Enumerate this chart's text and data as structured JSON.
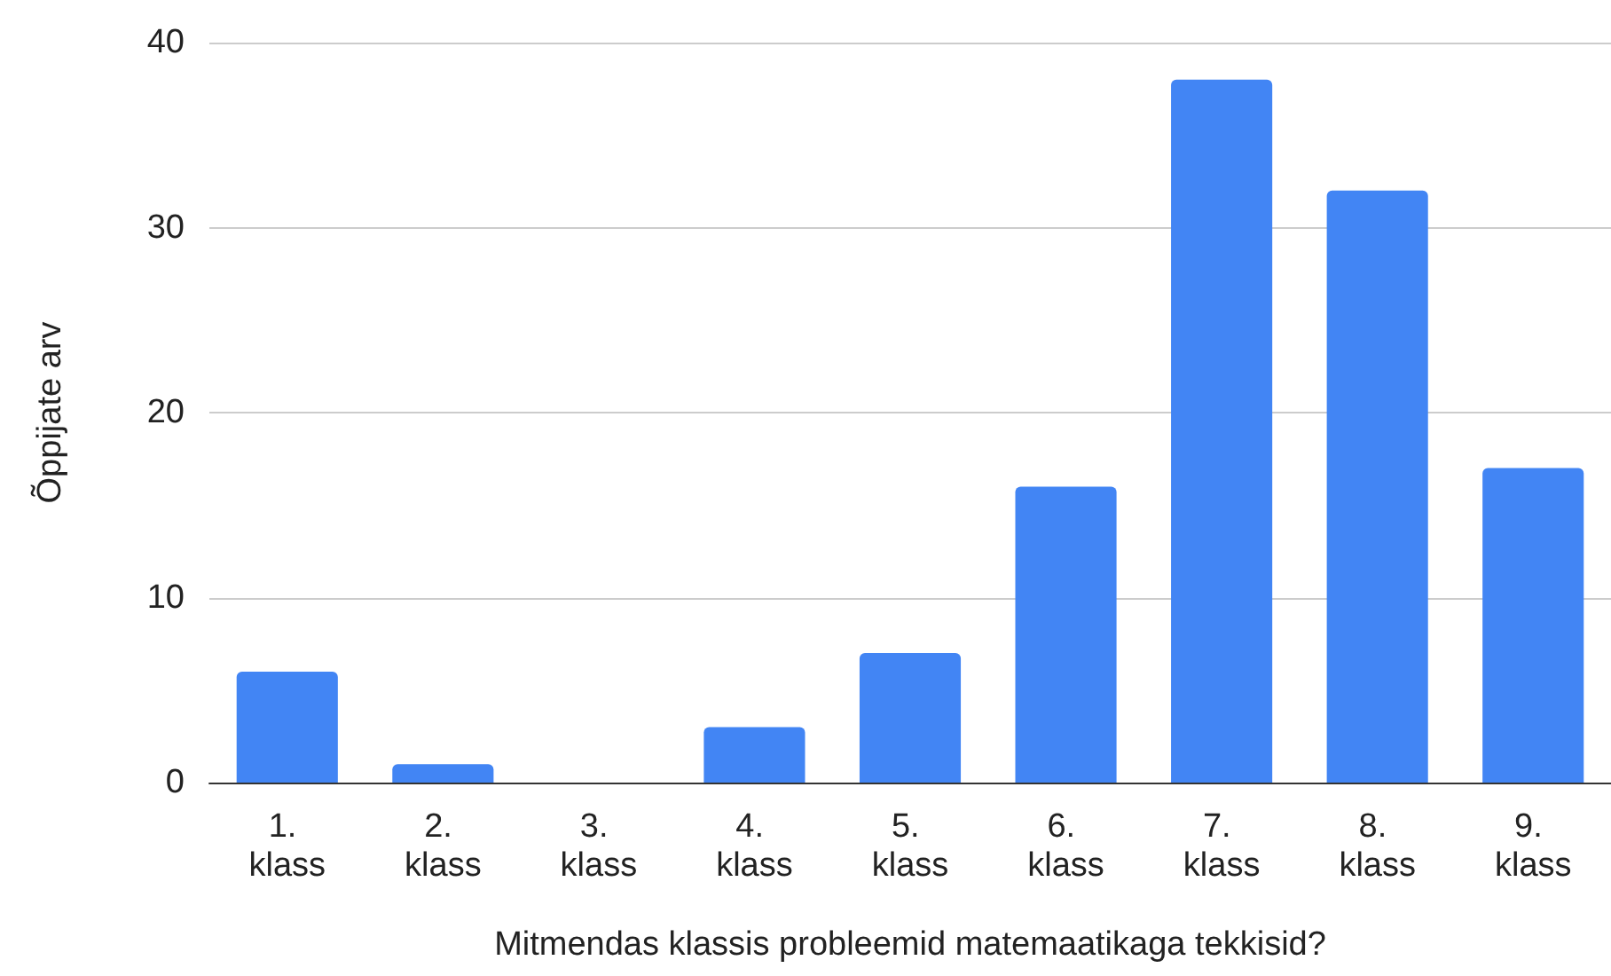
{
  "chart_data": {
    "type": "bar",
    "xlabel": "Mitmendas klassis probleemid matemaatikaga tekkisid?",
    "ylabel": "Õppijate arv",
    "categories": [
      "1. klass",
      "2. klass",
      "3. klass",
      "4. klass",
      "5. klass",
      "6. klass",
      "7. klass",
      "8. klass",
      "9. klass"
    ],
    "values": [
      6,
      1,
      0,
      3,
      7,
      16,
      38,
      32,
      17
    ],
    "color": "#4285f4",
    "ylim": [
      0,
      40
    ],
    "yticks": [
      0,
      10,
      20,
      30,
      40
    ],
    "grid": "y"
  }
}
